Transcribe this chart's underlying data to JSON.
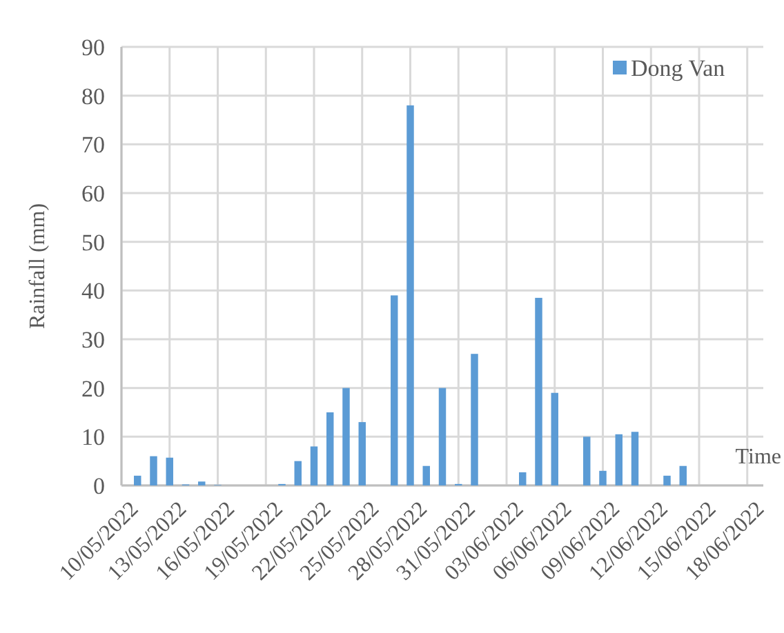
{
  "chart_data": {
    "type": "bar",
    "xlabel": "Time",
    "ylabel": "Rainfall (mm)",
    "x": [
      "2022-05-11",
      "2022-05-12",
      "2022-05-13",
      "2022-05-14",
      "2022-05-15",
      "2022-05-16",
      "2022-05-20",
      "2022-05-21",
      "2022-05-22",
      "2022-05-23",
      "2022-05-24",
      "2022-05-25",
      "2022-05-27",
      "2022-05-28",
      "2022-05-29",
      "2022-05-30",
      "2022-05-31",
      "2022-06-01",
      "2022-06-04",
      "2022-06-05",
      "2022-06-06",
      "2022-06-08",
      "2022-06-09",
      "2022-06-10",
      "2022-06-11",
      "2022-06-13",
      "2022-06-14"
    ],
    "series": [
      {
        "name": "Dong Van",
        "color": "#5b9bd5",
        "values": [
          2,
          6,
          5.7,
          0.2,
          0.8,
          0.1,
          0.3,
          5,
          8,
          15,
          20,
          13,
          39,
          78,
          4,
          20,
          0.3,
          27,
          2.7,
          38.5,
          19,
          10,
          3,
          10.5,
          11,
          2,
          4
        ]
      }
    ],
    "xlim": [
      "2022-05-10",
      "2022-06-19"
    ],
    "xticks": [
      {
        "value": "2022-05-10",
        "label": "10/05/2022"
      },
      {
        "value": "2022-05-13",
        "label": "13/05/2022"
      },
      {
        "value": "2022-05-16",
        "label": "16/05/2022"
      },
      {
        "value": "2022-05-19",
        "label": "19/05/2022"
      },
      {
        "value": "2022-05-22",
        "label": "22/05/2022"
      },
      {
        "value": "2022-05-25",
        "label": "25/05/2022"
      },
      {
        "value": "2022-05-28",
        "label": "28/05/2022"
      },
      {
        "value": "2022-05-31",
        "label": "31/05/2022"
      },
      {
        "value": "2022-06-03",
        "label": "03/06/2022"
      },
      {
        "value": "2022-06-06",
        "label": "06/06/2022"
      },
      {
        "value": "2022-06-09",
        "label": "09/06/2022"
      },
      {
        "value": "2022-06-12",
        "label": "12/06/2022"
      },
      {
        "value": "2022-06-15",
        "label": "15/06/2022"
      },
      {
        "value": "2022-06-18",
        "label": "18/06/2022"
      }
    ],
    "ylim": [
      0,
      90
    ],
    "yticks": [
      0,
      10,
      20,
      30,
      40,
      50,
      60,
      70,
      80,
      90
    ],
    "grid": true,
    "legend": "top right"
  }
}
